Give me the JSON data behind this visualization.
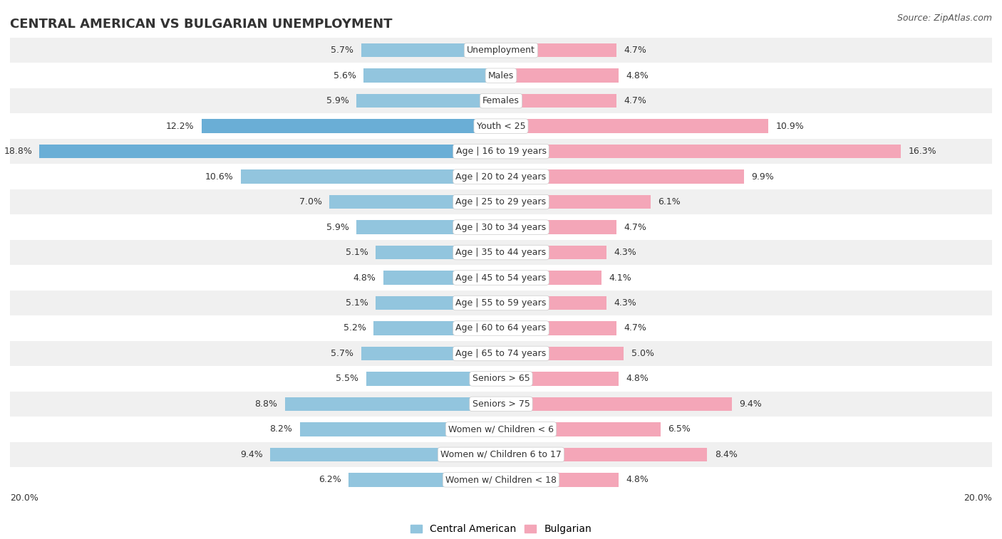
{
  "title": "CENTRAL AMERICAN VS BULGARIAN UNEMPLOYMENT",
  "source": "Source: ZipAtlas.com",
  "categories": [
    "Unemployment",
    "Males",
    "Females",
    "Youth < 25",
    "Age | 16 to 19 years",
    "Age | 20 to 24 years",
    "Age | 25 to 29 years",
    "Age | 30 to 34 years",
    "Age | 35 to 44 years",
    "Age | 45 to 54 years",
    "Age | 55 to 59 years",
    "Age | 60 to 64 years",
    "Age | 65 to 74 years",
    "Seniors > 65",
    "Seniors > 75",
    "Women w/ Children < 6",
    "Women w/ Children 6 to 17",
    "Women w/ Children < 18"
  ],
  "central_american": [
    5.7,
    5.6,
    5.9,
    12.2,
    18.8,
    10.6,
    7.0,
    5.9,
    5.1,
    4.8,
    5.1,
    5.2,
    5.7,
    5.5,
    8.8,
    8.2,
    9.4,
    6.2
  ],
  "bulgarian": [
    4.7,
    4.8,
    4.7,
    10.9,
    16.3,
    9.9,
    6.1,
    4.7,
    4.3,
    4.1,
    4.3,
    4.7,
    5.0,
    4.8,
    9.4,
    6.5,
    8.4,
    4.8
  ],
  "ca_color_normal": "#92c5de",
  "bg_color_normal": "#f4a6b8",
  "ca_color_highlight": "#6aaed6",
  "bg_color_highlight": "#f4a6b8",
  "highlight_rows": [
    3,
    4
  ],
  "bar_height": 0.55,
  "row_bg_even": "#f0f0f0",
  "row_bg_odd": "#ffffff",
  "xlim": 20.0,
  "label_fontsize": 9,
  "cat_fontsize": 9,
  "title_fontsize": 13,
  "source_fontsize": 9,
  "legend_fontsize": 10
}
